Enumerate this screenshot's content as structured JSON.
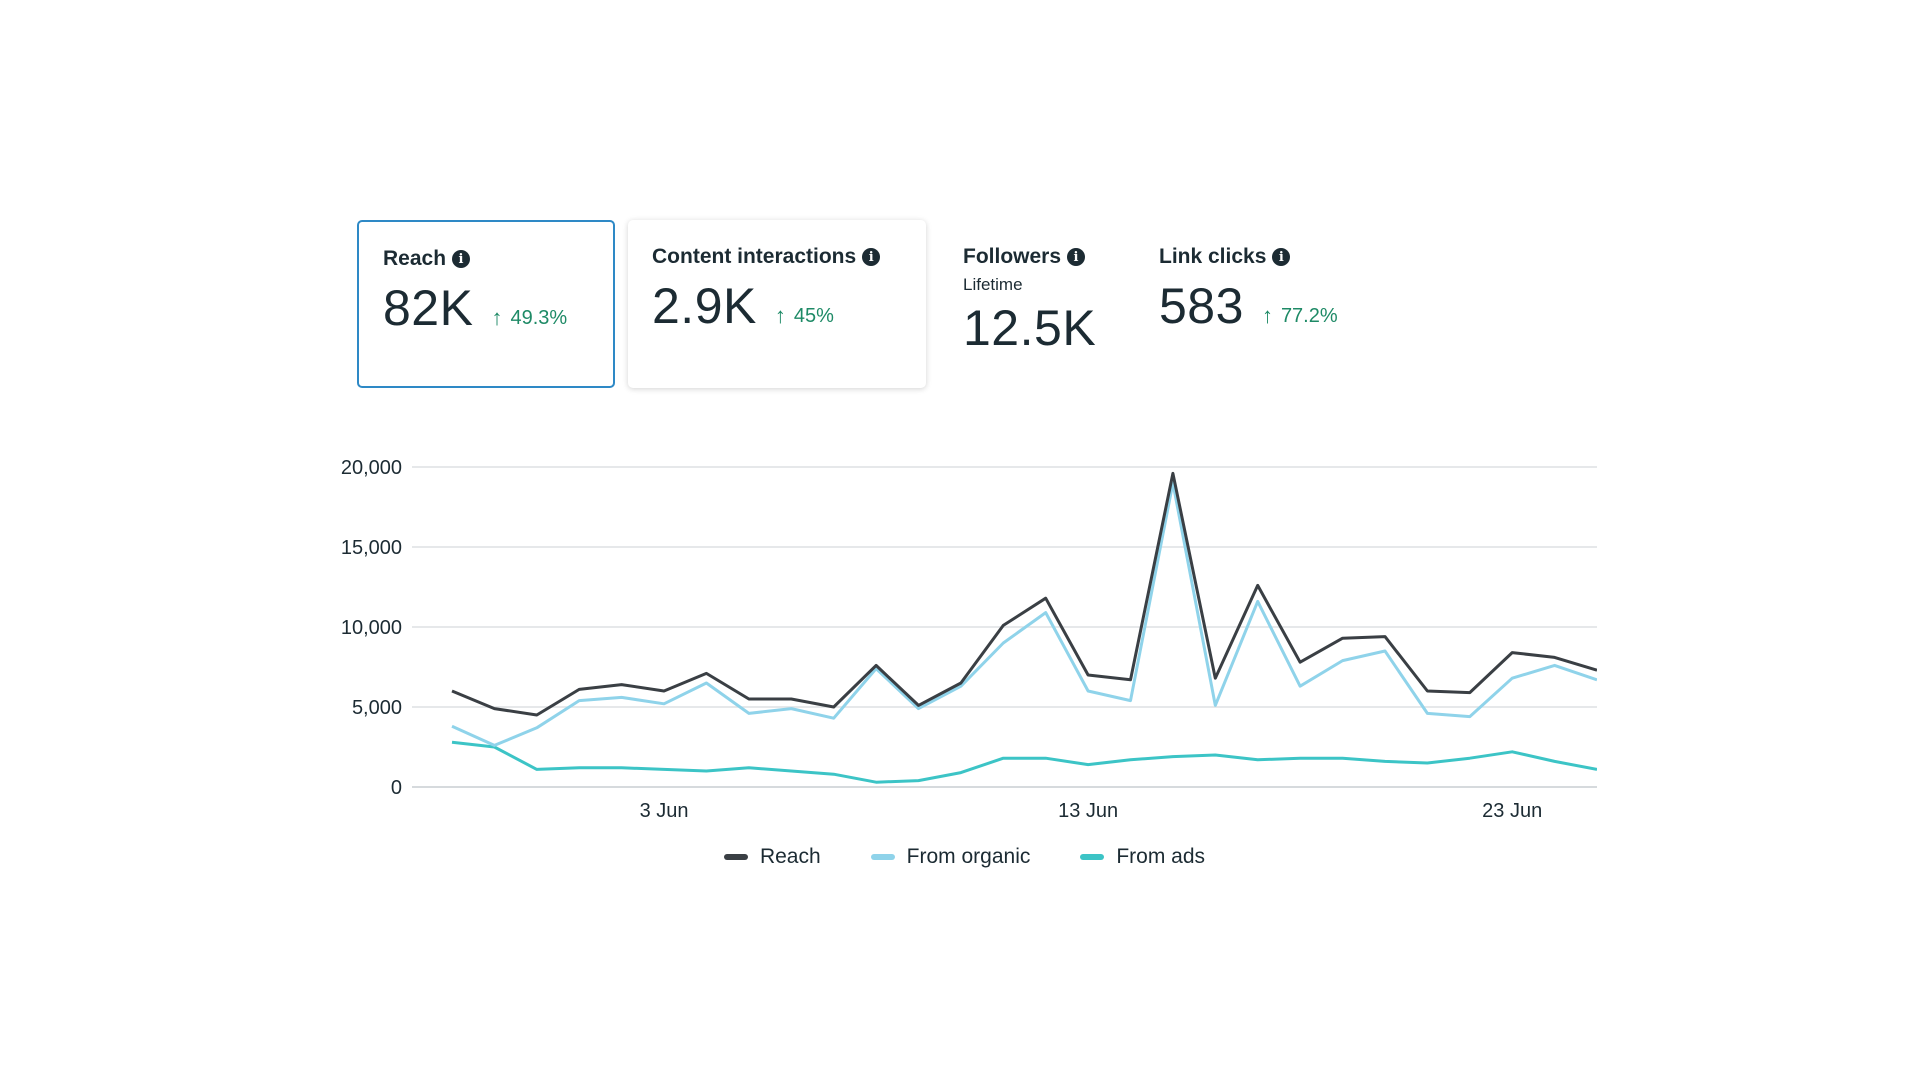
{
  "cards": [
    {
      "title": "Reach",
      "value": "82K",
      "change": "49.3%"
    },
    {
      "title": "Content interactions",
      "value": "2.9K",
      "change": "45%"
    },
    {
      "title": "Followers",
      "subtitle": "Lifetime",
      "value": "12.5K"
    },
    {
      "title": "Link clicks",
      "value": "583",
      "change": "77.2%"
    }
  ],
  "colors": {
    "reach": "#3a3f44",
    "organic": "#8fd3ea",
    "ads": "#3cc4c6",
    "grid": "#dde1e4",
    "positive": "#1e8a66",
    "selected_border": "#2e89c6"
  },
  "chart_data": {
    "type": "line",
    "x": [
      "29 May",
      "30 May",
      "31 May",
      "1 Jun",
      "2 Jun",
      "3 Jun",
      "4 Jun",
      "5 Jun",
      "6 Jun",
      "7 Jun",
      "8 Jun",
      "9 Jun",
      "10 Jun",
      "11 Jun",
      "12 Jun",
      "13 Jun",
      "14 Jun",
      "15 Jun",
      "16 Jun",
      "17 Jun",
      "18 Jun",
      "19 Jun",
      "20 Jun",
      "21 Jun",
      "22 Jun",
      "23 Jun",
      "24 Jun",
      "25 Jun"
    ],
    "x_ticks": [
      "3 Jun",
      "13 Jun",
      "23 Jun"
    ],
    "y_ticks": [
      "0",
      "5,000",
      "10,000",
      "15,000",
      "20,000"
    ],
    "y_tick_values": [
      0,
      5000,
      10000,
      15000,
      20000
    ],
    "ylim": [
      0,
      20000
    ],
    "grid": true,
    "legend_position": "bottom-center",
    "series": [
      {
        "name": "Reach",
        "color": "#3a3f44",
        "values": [
          6000,
          4900,
          4500,
          6100,
          6400,
          6000,
          7100,
          5500,
          5500,
          5000,
          7600,
          5100,
          6500,
          10100,
          11800,
          7000,
          6700,
          19600,
          6800,
          12600,
          7800,
          9300,
          9400,
          6000,
          5900,
          8400,
          8100,
          7300
        ]
      },
      {
        "name": "From organic",
        "color": "#8fd3ea",
        "values": [
          3800,
          2600,
          3700,
          5400,
          5600,
          5200,
          6500,
          4600,
          4900,
          4300,
          7400,
          4900,
          6300,
          9000,
          10900,
          6000,
          5400,
          19000,
          5100,
          11600,
          6300,
          7900,
          8500,
          4600,
          4400,
          6800,
          7600,
          6700
        ]
      },
      {
        "name": "From ads",
        "color": "#3cc4c6",
        "values": [
          2800,
          2500,
          1100,
          1200,
          1200,
          1100,
          1000,
          1200,
          1000,
          800,
          300,
          400,
          900,
          1800,
          1800,
          1400,
          1700,
          1900,
          2000,
          1700,
          1800,
          1800,
          1600,
          1500,
          1800,
          2200,
          1600,
          1100
        ]
      }
    ]
  }
}
